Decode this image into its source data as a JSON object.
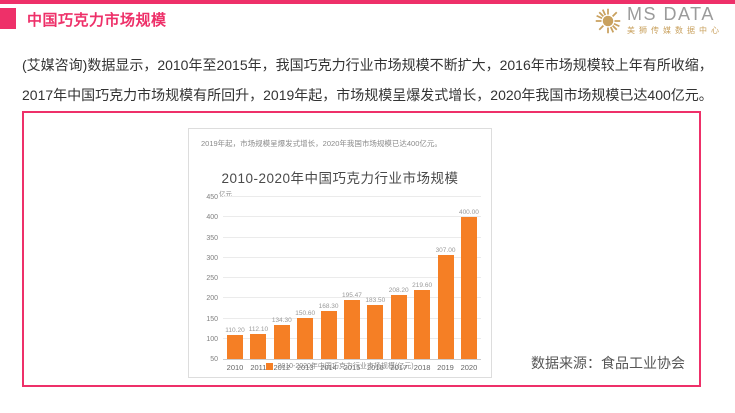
{
  "colors": {
    "accent_pink": "#EE3069",
    "bar_orange": "#F57F25",
    "logo_gold": "#C9A15E",
    "logo_gray": "#9B9B9B"
  },
  "header": {
    "title": "中国巧克力市场规模",
    "logo": {
      "name": "MS DATA",
      "subtitle": "美狮传媒数据中心"
    }
  },
  "body": {
    "lines": [
      "(艾媒咨询)数据显示，2010年至2015年，我国巧克力行业市场规模不断扩大，2016年市场规模较上年有所收缩，",
      "2017年中国巧克力市场规模有所回升，2019年起，市场规模呈爆发式增长，2020年我国市场规模已达400亿元。"
    ]
  },
  "chart_panel": {
    "note": "2019年起，市场规模呈爆发式增长，2020年我国市场规模已达400亿元。",
    "source": "数据来源：食品工业协会"
  },
  "chart_data": {
    "type": "bar",
    "title": "2010-2020年中国巧克力行业市场规模",
    "unit_label": "亿元",
    "categories": [
      "2010",
      "2011",
      "2012",
      "2013",
      "2014",
      "2015",
      "2016",
      "2017",
      "2018",
      "2019",
      "2020"
    ],
    "values": [
      110.2,
      112.1,
      134.3,
      150.6,
      168.3,
      195.47,
      183.5,
      208.2,
      219.6,
      307.0,
      400.0
    ],
    "value_labels": [
      "110.20",
      "112.10",
      "134.30",
      "150.60",
      "168.30",
      "195.47",
      "183.50",
      "208.20",
      "219.60",
      "307.00",
      "400.00"
    ],
    "ylim": [
      50,
      450
    ],
    "yticks": [
      50,
      100,
      150,
      200,
      250,
      300,
      350,
      400,
      450
    ],
    "grid": true,
    "legend": "2010-2020年中国巧克力行业市场规模(亿元)",
    "legend_position": "bottom",
    "bar_color": "#F57F25"
  }
}
